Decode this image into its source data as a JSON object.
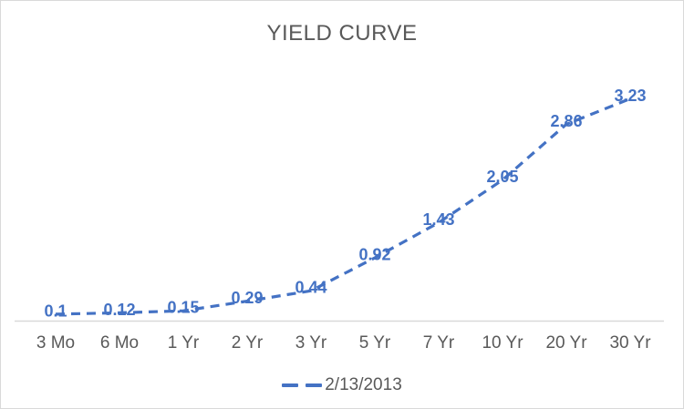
{
  "chart_data": {
    "type": "line",
    "title": "YIELD CURVE",
    "categories": [
      "3 Mo",
      "6 Mo",
      "1 Yr",
      "2 Yr",
      "3 Yr",
      "5 Yr",
      "7 Yr",
      "10 Yr",
      "20 Yr",
      "30 Yr"
    ],
    "series": [
      {
        "name": "2/13/2013",
        "values": [
          0.1,
          0.12,
          0.15,
          0.29,
          0.44,
          0.92,
          1.43,
          2.05,
          2.86,
          3.23
        ],
        "labels": [
          "0.1",
          "0.12",
          "0.15",
          "0.29",
          "0.44",
          "0.92",
          "1.43",
          "2.05",
          "2.86",
          "3.23"
        ]
      }
    ],
    "xlabel": "",
    "ylabel": "",
    "ylim": [
      0,
      3.5
    ],
    "grid": false,
    "legend_position": "bottom",
    "line_style": "dashed",
    "markers": false,
    "data_labels_position": "above",
    "colors": {
      "series": "#4472C4",
      "title": "#595959",
      "axis_labels": "#595959",
      "axis_line": "#D9D9D9",
      "border": "#D9D9D9",
      "background": "#FFFFFF"
    }
  }
}
